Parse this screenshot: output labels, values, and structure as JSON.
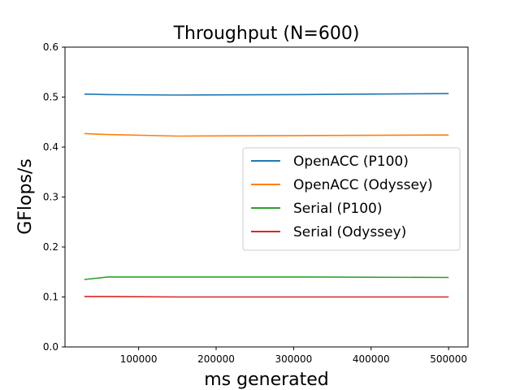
{
  "chart_data": {
    "type": "line",
    "title": "Throughput (N=600)",
    "xlabel": "ms generated",
    "ylabel": "GFlops/s",
    "xlim": [
      5000,
      525000
    ],
    "ylim": [
      0.0,
      0.6
    ],
    "xticks": [
      100000,
      200000,
      300000,
      400000,
      500000
    ],
    "yticks": [
      0.0,
      0.1,
      0.2,
      0.3,
      0.4,
      0.5,
      0.6
    ],
    "grid": false,
    "legend_position": "center-right",
    "series": [
      {
        "name": "OpenACC (P100)",
        "color": "#1f77b4",
        "x": [
          30000,
          60000,
          150000,
          300000,
          500000
        ],
        "y": [
          0.506,
          0.505,
          0.504,
          0.505,
          0.507
        ]
      },
      {
        "name": "OpenACC (Odyssey)",
        "color": "#ff7f0e",
        "x": [
          30000,
          60000,
          150000,
          300000,
          500000
        ],
        "y": [
          0.427,
          0.425,
          0.422,
          0.423,
          0.424
        ]
      },
      {
        "name": "Serial (P100)",
        "color": "#2ca02c",
        "x": [
          30000,
          60000,
          150000,
          300000,
          500000
        ],
        "y": [
          0.135,
          0.14,
          0.14,
          0.14,
          0.139
        ]
      },
      {
        "name": "Serial (Odyssey)",
        "color": "#d62728",
        "x": [
          30000,
          60000,
          150000,
          300000,
          500000
        ],
        "y": [
          0.101,
          0.101,
          0.1,
          0.1,
          0.1
        ]
      }
    ]
  }
}
